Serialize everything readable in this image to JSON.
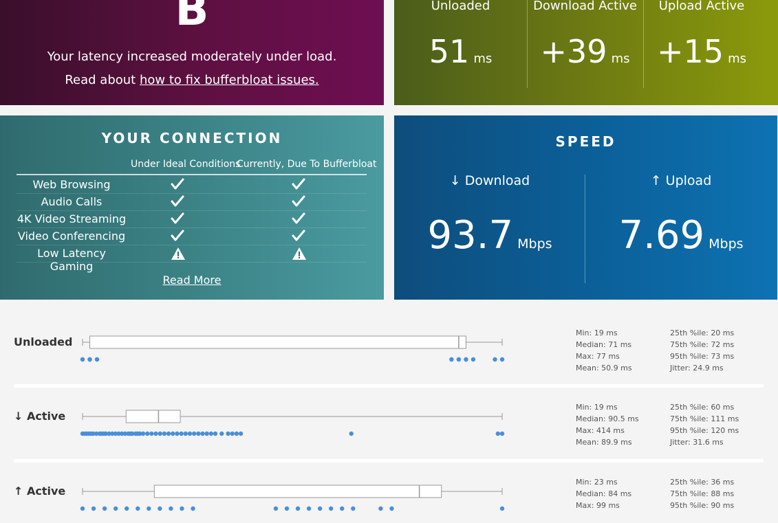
{
  "grade": {
    "letter": "B",
    "message": "Your latency increased moderately under load.",
    "read_prefix": "Read about ",
    "read_link": "how to fix bufferbloat issues."
  },
  "latency": [
    {
      "label": "Unloaded",
      "value": "51",
      "unit": "ms"
    },
    {
      "label": "Download Active",
      "value": "+39",
      "unit": "ms"
    },
    {
      "label": "Upload Active",
      "value": "+15",
      "unit": "ms"
    }
  ],
  "connection": {
    "title": "YOUR CONNECTION",
    "col1": "Under Ideal Conditions",
    "col2": "Currently, Due To Bufferbloat",
    "rows": [
      {
        "name": "Web Browsing",
        "ideal": "check",
        "current": "check"
      },
      {
        "name": "Audio Calls",
        "ideal": "check",
        "current": "check"
      },
      {
        "name": "4K Video Streaming",
        "ideal": "check",
        "current": "check"
      },
      {
        "name": "Video Conferencing",
        "ideal": "check",
        "current": "check"
      },
      {
        "name": "Low Latency Gaming",
        "ideal": "warning",
        "current": "warning"
      }
    ],
    "read_more": "Read More"
  },
  "speed": {
    "title": "SPEED",
    "download_label": "↓ Download",
    "download_value": "93.7",
    "upload_label": "↑ Upload",
    "upload_value": "7.69",
    "unit": "Mbps"
  },
  "distribution": {
    "rows": [
      {
        "label": "Unloaded",
        "box": {
          "whisker_low": 19,
          "q1": 20,
          "median": 71,
          "q3": 72,
          "whisker_high": 77
        },
        "points": [
          19,
          19,
          20,
          20,
          20,
          21,
          21,
          70,
          70,
          71,
          71,
          72,
          72,
          73,
          76,
          77
        ],
        "stats_left": [
          "Min: 19 ms",
          "Median: 71 ms",
          "Max: 77 ms",
          "Mean: 50.9 ms"
        ],
        "stats_right": [
          "25th %ile: 20 ms",
          "75th %ile: 72 ms",
          "95th %ile: 73 ms",
          "Jitter: 24.9 ms"
        ]
      },
      {
        "label": "↓ Active",
        "box": {
          "whisker_low": 19,
          "q1": 60,
          "median": 90.5,
          "q3": 111,
          "whisker_high": 414
        },
        "points": [
          19,
          21,
          23,
          25,
          27,
          29,
          32,
          35,
          37,
          39,
          41,
          44,
          47,
          50,
          53,
          56,
          59,
          62,
          64,
          66,
          69,
          71,
          73,
          76,
          80,
          84,
          88,
          92,
          96,
          100,
          104,
          108,
          112,
          116,
          120,
          124,
          128,
          132,
          136,
          140,
          144,
          150,
          156,
          160,
          164,
          168,
          272,
          410,
          414
        ],
        "stats_left": [
          "Min: 19 ms",
          "Median: 90.5 ms",
          "Max: 414 ms",
          "Mean: 89.9 ms"
        ],
        "stats_right": [
          "25th %ile: 60 ms",
          "75th %ile: 111 ms",
          "95th %ile: 120 ms",
          "Jitter: 31.6 ms"
        ]
      },
      {
        "label": "↑ Active",
        "box": {
          "whisker_low": 23,
          "q1": 36,
          "median": 84,
          "q3": 88,
          "whisker_high": 99
        },
        "points": [
          23,
          25,
          27,
          29,
          31,
          33,
          35,
          37,
          39,
          41,
          43,
          58,
          60,
          62,
          64,
          66,
          68,
          70,
          72,
          77,
          79,
          99
        ],
        "stats_left": [
          "Min: 23 ms",
          "Median: 84 ms",
          "Max: 99 ms"
        ],
        "stats_right": [
          "25th %ile: 36 ms",
          "75th %ile: 88 ms",
          "95th %ile: 90 ms"
        ]
      }
    ]
  },
  "colors": {
    "grade_bg": "#5f1042",
    "latency_bg": "#6d7a13",
    "connection_bg": "#3d8588",
    "speed_bg": "#0b5f98",
    "point": "#4a8fd8",
    "box_stroke": "#999999"
  }
}
